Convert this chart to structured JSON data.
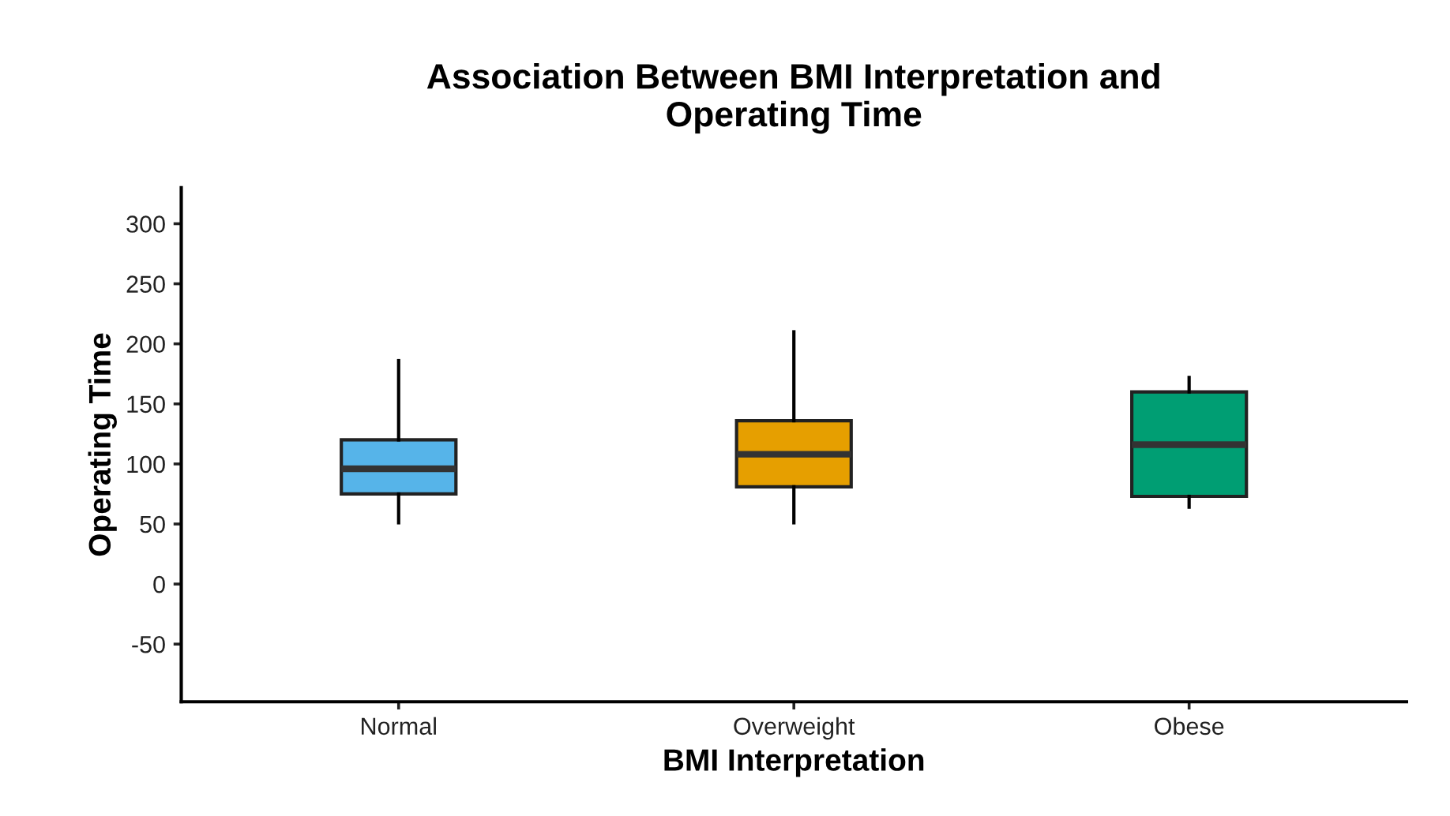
{
  "chart_data": {
    "type": "box",
    "title": "Association Between BMI Interpretation and\nOperating Time",
    "xlabel": "BMI Interpretation",
    "ylabel": "Operating Time",
    "categories": [
      "Normal",
      "Overweight",
      "Obese"
    ],
    "colors": [
      "#56b4e9",
      "#e69f00",
      "#009e73"
    ],
    "boxes": [
      {
        "low": 51,
        "q1": 75,
        "median": 96,
        "q3": 120,
        "high": 186
      },
      {
        "low": 51,
        "q1": 81,
        "median": 108,
        "q3": 136,
        "high": 210
      },
      {
        "low": 64,
        "q1": 73,
        "median": 116,
        "q3": 160,
        "high": 172
      }
    ],
    "ylim": [
      -98,
      330
    ],
    "yticks": [
      -50,
      0,
      50,
      100,
      150,
      200,
      250,
      300
    ],
    "grid": false
  }
}
